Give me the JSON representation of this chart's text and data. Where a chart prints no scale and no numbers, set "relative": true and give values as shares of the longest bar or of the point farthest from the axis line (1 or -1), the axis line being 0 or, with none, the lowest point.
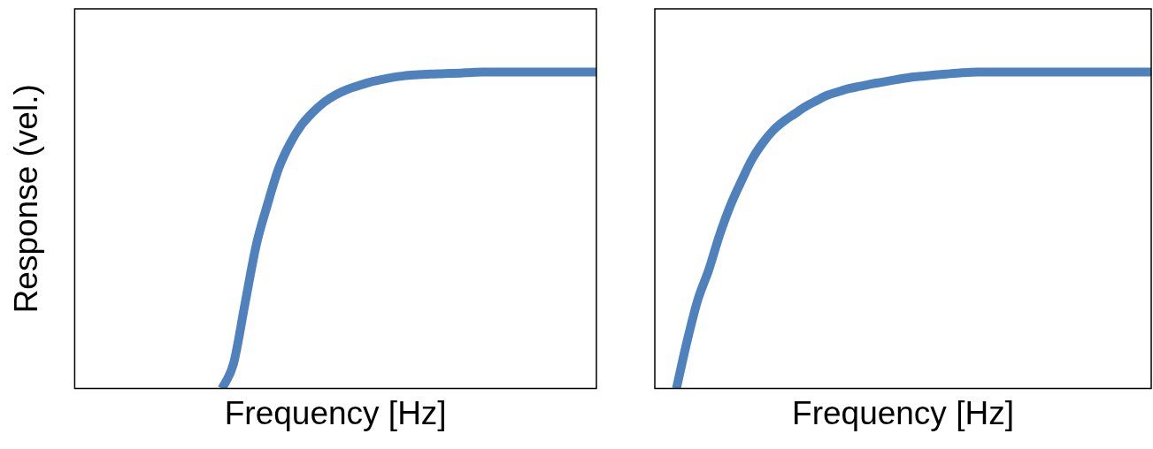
{
  "chart_data": [
    {
      "type": "line",
      "ylabel": "Response (vel.)",
      "xlabel": "Frequency [Hz]",
      "relative": true,
      "tick_labels": false,
      "grid": false,
      "marker": "none",
      "line_style": "solid",
      "categories": [
        null,
        null,
        null,
        null,
        null,
        null,
        null,
        null,
        null,
        null,
        null,
        null,
        null,
        null,
        null,
        null,
        null,
        null,
        null,
        null,
        null,
        null,
        null,
        null,
        null,
        null,
        null,
        null,
        null,
        null,
        null,
        null,
        null,
        null,
        null,
        null,
        null,
        null,
        null,
        null,
        null,
        null,
        null,
        null,
        null,
        null,
        null
      ],
      "series": [
        {
          "color": "#4f81bd",
          "values": [
            null,
            null,
            null,
            null,
            null,
            null,
            null,
            null,
            null,
            null,
            null,
            null,
            null,
            0,
            0.078,
            0.265,
            0.452,
            0.582,
            0.697,
            0.775,
            0.833,
            0.873,
            0.905,
            0.928,
            0.945,
            0.957,
            0.968,
            0.976,
            0.983,
            0.988,
            0.991,
            0.993,
            0.995,
            0.996,
            0.997,
            0.999,
            1,
            1,
            1,
            1,
            1,
            1,
            1,
            1,
            1,
            1,
            1
          ]
        }
      ]
    },
    {
      "type": "line",
      "xlabel": "Frequency [Hz]",
      "relative": true,
      "tick_labels": false,
      "grid": false,
      "marker": "none",
      "line_style": "solid",
      "categories": [
        null,
        null,
        null,
        null,
        null,
        null,
        null,
        null,
        null,
        null,
        null,
        null,
        null,
        null,
        null,
        null,
        null,
        null,
        null,
        null,
        null,
        null,
        null,
        null,
        null,
        null,
        null,
        null,
        null,
        null,
        null,
        null,
        null,
        null,
        null,
        null,
        null,
        null,
        null,
        null,
        null,
        null,
        null,
        null,
        null,
        null,
        null
      ],
      "series": [
        {
          "color": "#4f81bd",
          "values": [
            null,
            null,
            0,
            0.151,
            0.282,
            0.375,
            0.485,
            0.578,
            0.654,
            0.724,
            0.776,
            0.817,
            0.846,
            0.869,
            0.892,
            0.91,
            0.927,
            0.938,
            0.948,
            0.955,
            0.962,
            0.968,
            0.974,
            0.98,
            0.985,
            0.988,
            0.991,
            0.994,
            0.997,
            0.999,
            1,
            1,
            1,
            1,
            1,
            1,
            1,
            1,
            1,
            1,
            1,
            1,
            1,
            1,
            1,
            1,
            1
          ]
        }
      ]
    }
  ]
}
